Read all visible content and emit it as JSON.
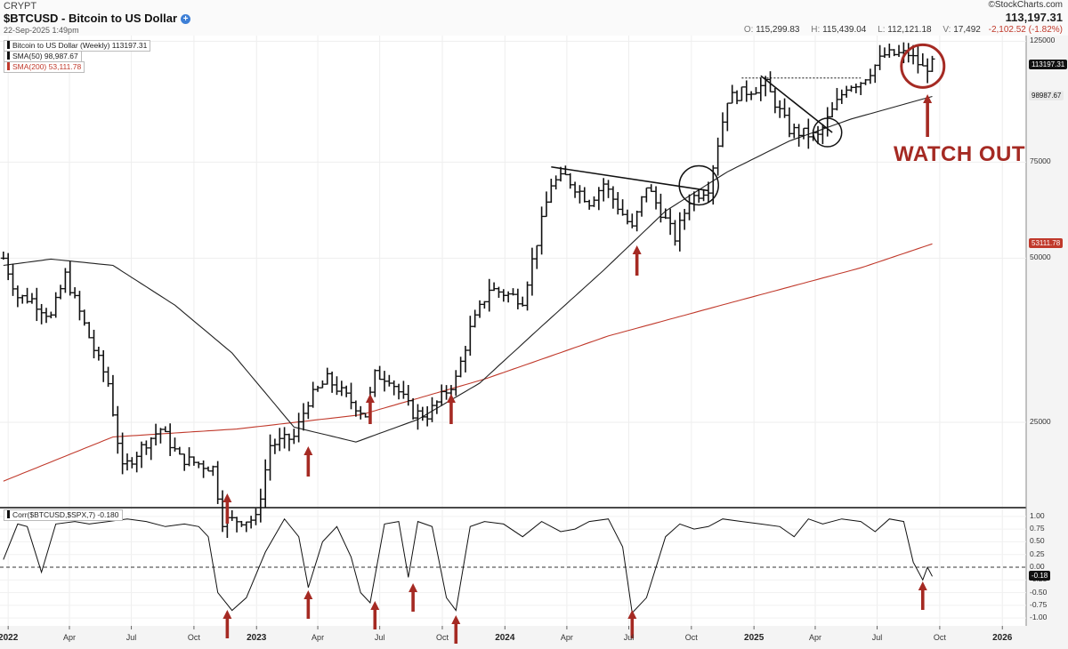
{
  "header": {
    "exchange": "CRYPT",
    "ticker": "$BTCUSD - Bitcoin to US Dollar",
    "datetime": "22-Sep-2025 1:49pm",
    "brand": "©StockCharts.com",
    "last_price": "113,197.31",
    "open_label": "O:",
    "open": "115,299.83",
    "high_label": "H:",
    "high": "115,439.04",
    "low_label": "L:",
    "low": "112,121.18",
    "vol_label": "V:",
    "vol": "17,492",
    "change": "-2,102.52 (-1.82%)"
  },
  "legend": {
    "main": "Bitcoin to US Dollar (Weekly) 113197.31",
    "sma50": "SMA(50) 98,987.67",
    "sma200": "SMA(200) 53,111.78",
    "corr": "Corr($BTCUSD,$SPX,7) -0.180"
  },
  "annotation": {
    "watch_out": "WATCH OUT"
  },
  "colors": {
    "price": "#111111",
    "sma50": "#222222",
    "sma200": "#c0392b",
    "arrows": "#a52a23",
    "tag_dark": "#111111",
    "tag_red": "#c0392b"
  },
  "chart_data": [
    {
      "type": "ohlc",
      "scale": "log",
      "y_ticks": [
        25000,
        50000,
        75000,
        125000
      ],
      "y_tick_labels": [
        "25000",
        "50000",
        "75000",
        "125000"
      ],
      "ylim": [
        17500,
        128000
      ],
      "x_ticks": [
        "2022",
        "Apr",
        "Jul",
        "Oct",
        "2023",
        "Apr",
        "Jul",
        "Oct",
        "2024",
        "Apr",
        "Jul",
        "Oct",
        "2025",
        "Apr",
        "Jul",
        "Oct",
        "2026"
      ],
      "x_tick_dates": [
        "2022-01-01",
        "2022-04-01",
        "2022-07-01",
        "2022-10-01",
        "2023-01-01",
        "2023-04-01",
        "2023-07-01",
        "2023-10-01",
        "2024-01-01",
        "2024-04-01",
        "2024-07-01",
        "2024-10-01",
        "2025-01-01",
        "2025-04-01",
        "2025-07-01",
        "2025-10-01",
        "2026-01-01"
      ],
      "xlim": [
        "2021-12-20",
        "2026-02-05"
      ],
      "price_tags": [
        "113197.31",
        "98987.67",
        "53111.78"
      ],
      "series": [
        {
          "name": "Bitcoin to US Dollar (Weekly)",
          "anchor_dates": [
            "2021-12-25",
            "2022-01-15",
            "2022-02-05",
            "2022-03-05",
            "2022-03-26",
            "2022-05-07",
            "2022-05-28",
            "2022-06-18",
            "2022-07-23",
            "2022-08-13",
            "2022-09-10",
            "2022-10-29",
            "2022-11-12",
            "2022-12-31",
            "2023-01-21",
            "2023-02-25",
            "2023-03-18",
            "2023-04-15",
            "2023-06-10",
            "2023-06-24",
            "2023-07-15",
            "2023-08-19",
            "2023-09-09",
            "2023-10-21",
            "2023-11-11",
            "2023-12-09",
            "2024-01-27",
            "2024-03-09",
            "2024-03-30",
            "2024-05-04",
            "2024-05-25",
            "2024-07-06",
            "2024-07-27",
            "2024-09-07",
            "2024-09-28",
            "2024-10-26",
            "2024-11-23",
            "2024-12-14",
            "2025-01-18",
            "2025-02-22",
            "2025-03-08",
            "2025-04-05",
            "2025-05-17",
            "2025-06-07",
            "2025-07-12",
            "2025-08-16",
            "2025-09-06",
            "2025-09-20"
          ],
          "anchor_closes": [
            50000,
            42500,
            42000,
            39000,
            46500,
            34000,
            29500,
            20500,
            23000,
            24300,
            21500,
            20600,
            16500,
            16600,
            22700,
            23500,
            27400,
            30000,
            25800,
            30500,
            30200,
            26000,
            25800,
            30000,
            37000,
            44000,
            42000,
            68500,
            70500,
            63500,
            68500,
            56500,
            68000,
            54500,
            64000,
            67500,
            98000,
            100500,
            104000,
            86000,
            85000,
            83500,
            103500,
            105500,
            118000,
            118500,
            111500,
            113197
          ]
        },
        {
          "name": "SMA(50)",
          "anchor_dates": [
            "2021-12-25",
            "2022-03-05",
            "2022-06-04",
            "2022-09-03",
            "2022-11-26",
            "2023-02-25",
            "2023-05-27",
            "2023-08-26",
            "2023-11-25",
            "2024-02-24",
            "2024-05-25",
            "2024-08-24",
            "2024-11-23",
            "2025-02-22",
            "2025-05-24",
            "2025-09-20"
          ],
          "anchor_values": [
            48500,
            49800,
            48500,
            41000,
            33500,
            24500,
            23000,
            25300,
            29500,
            37500,
            47500,
            61000,
            72000,
            82000,
            90000,
            98987.67
          ]
        },
        {
          "name": "SMA(200)",
          "anchor_dates": [
            "2021-12-25",
            "2022-06-04",
            "2022-12-03",
            "2023-06-03",
            "2023-12-02",
            "2024-06-01",
            "2024-11-30",
            "2025-06-07",
            "2025-09-20"
          ],
          "anchor_values": [
            19500,
            23500,
            24300,
            25800,
            30000,
            36000,
            41500,
            48000,
            53111.78
          ]
        }
      ]
    },
    {
      "type": "line",
      "y_ticks": [
        1.0,
        0.75,
        0.5,
        0.25,
        0.0,
        -0.25,
        -0.5,
        -0.75,
        -1.0
      ],
      "y_tick_labels": [
        "1.00",
        "0.75",
        "0.50",
        "0.25",
        "0.00",
        "-0.25",
        "-0.50",
        "-0.75",
        "-1.00"
      ],
      "ylim": [
        -1.05,
        1.05
      ],
      "value_tag": "-0.18",
      "series": [
        {
          "name": "Corr($BTCUSD,$SPX,7)",
          "dates": [
            "2021-12-25",
            "2022-01-15",
            "2022-01-29",
            "2022-02-19",
            "2022-03-12",
            "2022-04-09",
            "2022-04-30",
            "2022-05-28",
            "2022-06-25",
            "2022-07-23",
            "2022-08-20",
            "2022-09-17",
            "2022-10-08",
            "2022-10-22",
            "2022-11-05",
            "2022-11-26",
            "2022-12-17",
            "2023-01-14",
            "2023-02-11",
            "2023-03-04",
            "2023-03-18",
            "2023-04-08",
            "2023-04-29",
            "2023-05-20",
            "2023-06-03",
            "2023-06-17",
            "2023-07-08",
            "2023-07-29",
            "2023-08-12",
            "2023-08-26",
            "2023-09-16",
            "2023-10-07",
            "2023-10-21",
            "2023-11-11",
            "2023-12-02",
            "2023-12-30",
            "2024-01-27",
            "2024-02-24",
            "2024-03-23",
            "2024-04-13",
            "2024-05-04",
            "2024-06-01",
            "2024-06-22",
            "2024-07-06",
            "2024-07-27",
            "2024-08-24",
            "2024-09-14",
            "2024-10-05",
            "2024-10-26",
            "2024-11-16",
            "2024-12-14",
            "2025-01-11",
            "2025-02-08",
            "2025-03-01",
            "2025-03-22",
            "2025-04-12",
            "2025-05-10",
            "2025-06-07",
            "2025-06-28",
            "2025-07-19",
            "2025-08-09",
            "2025-08-23",
            "2025-09-06",
            "2025-09-13",
            "2025-09-20"
          ],
          "values": [
            0.15,
            0.85,
            0.8,
            -0.1,
            0.85,
            0.9,
            0.85,
            0.9,
            0.95,
            0.9,
            0.8,
            0.85,
            0.8,
            0.6,
            -0.5,
            -0.85,
            -0.6,
            0.3,
            0.95,
            0.6,
            -0.4,
            0.5,
            0.8,
            0.2,
            -0.5,
            -0.7,
            0.85,
            0.9,
            -0.2,
            0.9,
            0.8,
            -0.6,
            -0.85,
            0.8,
            0.9,
            0.85,
            0.6,
            0.9,
            0.7,
            0.75,
            0.9,
            0.95,
            0.4,
            -0.9,
            -0.6,
            0.6,
            0.85,
            0.75,
            0.8,
            0.95,
            0.9,
            0.85,
            0.8,
            0.6,
            0.95,
            0.85,
            0.95,
            0.9,
            0.7,
            0.95,
            0.9,
            0.1,
            -0.25,
            0.0,
            -0.18
          ]
        }
      ]
    }
  ]
}
